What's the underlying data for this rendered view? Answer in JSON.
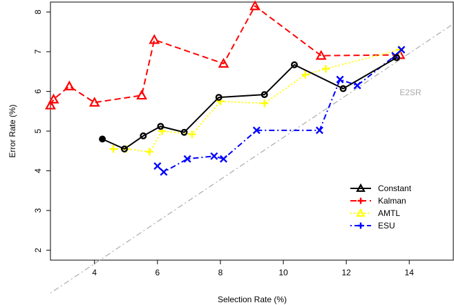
{
  "chart_data": {
    "type": "line",
    "xlabel": "Selection Rate (%)",
    "ylabel": "Error Rate (%)",
    "xlim": [
      2.6,
      15.4
    ],
    "ylim": [
      1.75,
      8.25
    ],
    "xticks": [
      4,
      6,
      8,
      10,
      12,
      14
    ],
    "yticks": [
      2,
      3,
      4,
      5,
      6,
      7,
      8
    ],
    "grid": false,
    "legend_position": "bottom-right",
    "annotations": [
      {
        "text": "E2SR",
        "x": 14.2,
        "y": 6.0,
        "color": "#aaaaaa"
      }
    ],
    "reference_line": {
      "x": [
        2.6,
        15.4
      ],
      "y": [
        0.92,
        7.7
      ],
      "color": "#aaaaaa",
      "style": "dotdash"
    },
    "series": [
      {
        "name": "Constant",
        "color": "#000000",
        "marker": "circle",
        "dash": "solid",
        "x": [
          4.25,
          4.95,
          5.55,
          6.1,
          6.85,
          7.95,
          9.4,
          10.35,
          11.9,
          13.6
        ],
        "y": [
          4.8,
          4.55,
          4.88,
          5.12,
          4.97,
          5.85,
          5.92,
          6.67,
          6.07,
          6.85
        ]
      },
      {
        "name": "Kalman",
        "color": "#ff0000",
        "marker": "triangle",
        "dash": "dashed",
        "x": [
          2.6,
          2.7,
          3.2,
          4.0,
          5.5,
          5.9,
          8.1,
          9.1,
          11.2,
          13.7
        ],
        "y": [
          5.65,
          5.8,
          6.13,
          5.72,
          5.9,
          7.3,
          6.7,
          8.15,
          6.9,
          6.92
        ]
      },
      {
        "name": "AMTL",
        "color": "#ffff00",
        "marker": "plus",
        "dash": "dotted",
        "x": [
          4.6,
          5.0,
          5.75,
          6.15,
          7.1,
          8.0,
          9.4,
          10.7,
          11.35,
          13.7
        ],
        "y": [
          4.55,
          4.55,
          4.48,
          5.0,
          4.92,
          5.75,
          5.7,
          6.42,
          6.57,
          7.05
        ]
      },
      {
        "name": "ESU",
        "color": "#0000ff",
        "marker": "cross",
        "dash": "dotdash",
        "x": [
          6.0,
          6.2,
          6.95,
          7.8,
          8.1,
          9.15,
          11.15,
          11.8,
          12.35,
          13.55,
          13.75
        ],
        "y": [
          4.12,
          3.97,
          4.3,
          4.37,
          4.3,
          5.02,
          5.02,
          6.3,
          6.15,
          6.9,
          7.05
        ]
      }
    ]
  }
}
